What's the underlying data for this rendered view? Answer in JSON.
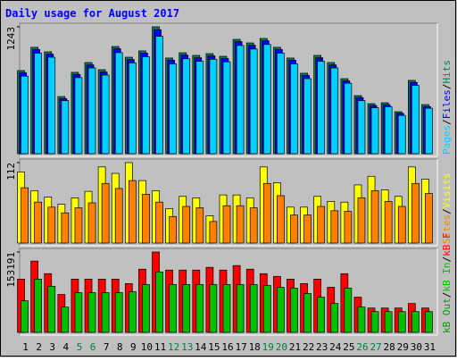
{
  "title": "Daily usage for August 2017",
  "legend_separator": "/",
  "days": [
    "1",
    "2",
    "3",
    "4",
    "5",
    "6",
    "7",
    "8",
    "9",
    "10",
    "11",
    "12",
    "13",
    "14",
    "15",
    "16",
    "17",
    "18",
    "19",
    "20",
    "21",
    "22",
    "23",
    "24",
    "25",
    "26",
    "27",
    "28",
    "29",
    "30",
    "31"
  ],
  "day_colors": [
    "#000000",
    "#000000",
    "#000000",
    "#000000",
    "#008040",
    "#008040",
    "#000000",
    "#000000",
    "#000000",
    "#000000",
    "#000000",
    "#008040",
    "#008040",
    "#000000",
    "#000000",
    "#000000",
    "#000000",
    "#000000",
    "#008040",
    "#008040",
    "#000000",
    "#000000",
    "#000000",
    "#000000",
    "#000000",
    "#008040",
    "#008040",
    "#000000",
    "#000000",
    "#000000",
    "#000000"
  ],
  "chart_data": [
    {
      "type": "bar",
      "ylim": [
        0,
        1243
      ],
      "yticks": [
        1243
      ],
      "series": [
        {
          "name": "Hits",
          "color": "#008060",
          "values": [
            814,
            1042,
            998,
            560,
            797,
            893,
            823,
            1050,
            945,
            1007,
            1243,
            937,
            989,
            963,
            980,
            954,
            1120,
            1085,
            1129,
            1042,
            937,
            788,
            963,
            893,
            735,
            569,
            490,
            499,
            411,
            718,
            481
          ]
        },
        {
          "name": "Files",
          "color": "#0000FF",
          "values": [
            794,
            1020,
            975,
            540,
            776,
            870,
            800,
            1028,
            922,
            985,
            1215,
            915,
            966,
            940,
            958,
            932,
            1098,
            1062,
            1106,
            1020,
            915,
            766,
            940,
            870,
            714,
            550,
            472,
            480,
            395,
            698,
            462
          ]
        },
        {
          "name": "Pages",
          "color": "#00D0FF",
          "values": [
            760,
            985,
            945,
            520,
            745,
            840,
            770,
            990,
            890,
            950,
            1150,
            880,
            930,
            905,
            925,
            900,
            1060,
            1025,
            1070,
            985,
            880,
            735,
            905,
            840,
            690,
            520,
            450,
            460,
            375,
            670,
            445
          ]
        }
      ]
    },
    {
      "type": "bar",
      "ylim": [
        0,
        112
      ],
      "yticks": [
        112
      ],
      "series": [
        {
          "name": "Visits",
          "color": "#FFFF00",
          "values": [
            99,
            73,
            64,
            54,
            63,
            72,
            106,
            97,
            112,
            87,
            73,
            48,
            65,
            63,
            38,
            67,
            67,
            63,
            106,
            84,
            50,
            50,
            65,
            58,
            57,
            81,
            93,
            74,
            65,
            106,
            89
          ]
        },
        {
          "name": "Sites",
          "color": "#FF8000",
          "values": [
            77,
            57,
            50,
            42,
            49,
            56,
            83,
            76,
            87,
            68,
            57,
            37,
            51,
            49,
            30,
            52,
            52,
            49,
            83,
            66,
            39,
            39,
            51,
            45,
            44,
            63,
            73,
            58,
            51,
            83,
            69
          ]
        }
      ]
    },
    {
      "type": "bar",
      "ylim": [
        0,
        153191
      ],
      "yticks": [
        153191
      ],
      "series": [
        {
          "name": "kB F",
          "color": "#FF0000",
          "values": [
            101539,
            135959,
            111865,
            72282,
            101539,
            101539,
            101539,
            101539,
            92934,
            120470,
            153191,
            118749,
            118749,
            118749,
            123912,
            118749,
            127354,
            120470,
            111865,
            106702,
            101539,
            92934,
            101539,
            86050,
            111865,
            67119,
            46467,
            46467,
            46467,
            55072,
            46467
          ]
        },
        {
          "name": "kB In",
          "color": "#00C000",
          "values": [
            60200,
            101500,
            87900,
            48200,
            75700,
            75700,
            75700,
            75700,
            77400,
            91200,
            115300,
            91200,
            91200,
            91200,
            91200,
            91200,
            91200,
            91200,
            89500,
            86000,
            84300,
            74000,
            67100,
            55100,
            84300,
            48200,
            39600,
            39600,
            39600,
            39600,
            39600
          ]
        }
      ],
      "extra_legend": {
        "name": "kB Out",
        "color": "#00A000"
      }
    }
  ]
}
